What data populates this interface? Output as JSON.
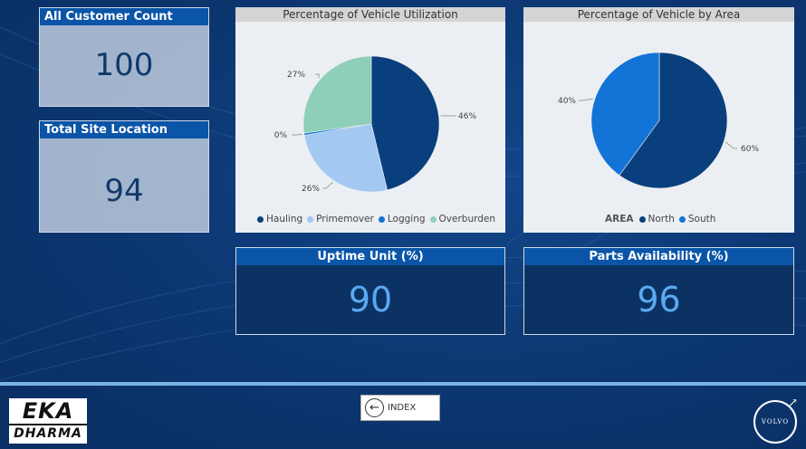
{
  "kpis": {
    "customer": {
      "title": "All Customer Count",
      "value": "100"
    },
    "site": {
      "title": "Total Site Location",
      "value": "94"
    }
  },
  "utilization": {
    "title": "Percentage of Vehicle Utilization",
    "legend_title": "",
    "chart_data": {
      "type": "pie",
      "title": "Percentage of Vehicle Utilization",
      "categories": [
        "Hauling",
        "Primemover",
        "Logging",
        "Overburden"
      ],
      "values": [
        46,
        26,
        0.5,
        27
      ],
      "labels": [
        "46%",
        "26%",
        "0%",
        "27%"
      ],
      "colors": [
        "#0a3f7e",
        "#a3c8f2",
        "#1274d6",
        "#8dcfb8"
      ],
      "legend": "bottom"
    }
  },
  "area": {
    "title": "Percentage of Vehicle by Area",
    "legend_title": "AREA",
    "chart_data": {
      "type": "pie",
      "title": "Percentage of Vehicle by Area",
      "categories": [
        "North",
        "South"
      ],
      "values": [
        60,
        40
      ],
      "labels": [
        "60%",
        "40%"
      ],
      "colors": [
        "#0a3f7e",
        "#1274d6"
      ],
      "legend": "bottom"
    }
  },
  "uptime": {
    "title": "Uptime Unit (%)",
    "value": "90"
  },
  "parts": {
    "title": "Parts Availability (%)",
    "value": "96"
  },
  "nav": {
    "index_label": "INDEX"
  },
  "logo": {
    "line1": "EKA",
    "line2": "DHARMA"
  },
  "brand": {
    "volvo": "VOLVO"
  }
}
